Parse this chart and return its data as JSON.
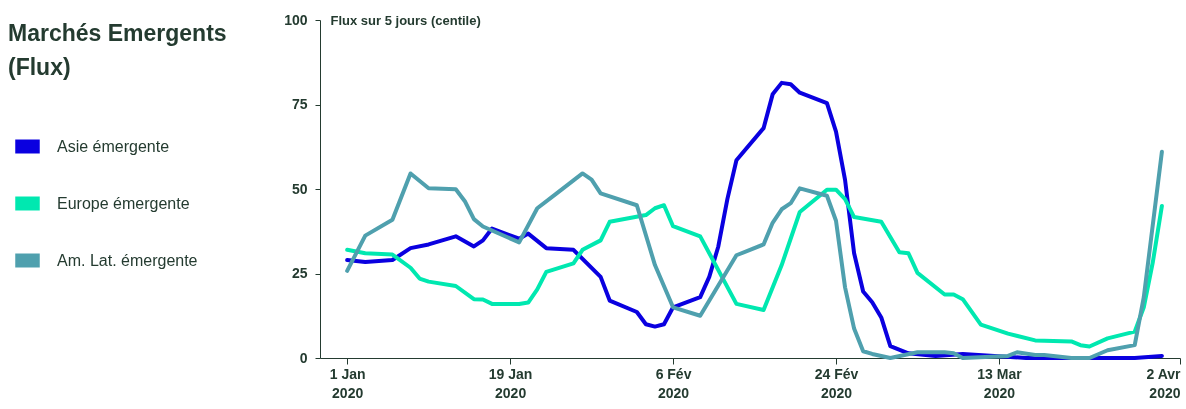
{
  "chart_data": {
    "type": "line",
    "title": "Marchés Emergents (Flux)",
    "ylabel": "Flux sur 5 jours (centile)",
    "xlim": [
      "2019-12-29",
      "2020-04-02"
    ],
    "ylim": [
      0,
      100
    ],
    "yticks": [
      0,
      25,
      50,
      75,
      100
    ],
    "xticks": [
      {
        "value": "2020-01-01",
        "label": "1 Jan\n2020"
      },
      {
        "value": "2020-01-19",
        "label": "19 Jan\n2020"
      },
      {
        "value": "2020-02-06",
        "label": "6 Fév\n2020"
      },
      {
        "value": "2020-02-24",
        "label": "24 Fév\n2020"
      },
      {
        "value": "2020-03-13",
        "label": "13 Mar\n2020"
      },
      {
        "value": "2020-04-02",
        "label": "2 Avr\n2020"
      }
    ],
    "legend": "left",
    "line_style": "solid",
    "series": [
      {
        "name": "Asie émergente",
        "color": "#0a00e0",
        "x": [
          "2020-01-01",
          "2020-01-03",
          "2020-01-06",
          "2020-01-08",
          "2020-01-10",
          "2020-01-13",
          "2020-01-15",
          "2020-01-16",
          "2020-01-17",
          "2020-01-20",
          "2020-01-21",
          "2020-01-23",
          "2020-01-26",
          "2020-01-29",
          "2020-01-30",
          "2020-02-02",
          "2020-02-03",
          "2020-02-04",
          "2020-02-05",
          "2020-02-06",
          "2020-02-09",
          "2020-02-10",
          "2020-02-11",
          "2020-02-12",
          "2020-02-13",
          "2020-02-16",
          "2020-02-17",
          "2020-02-18",
          "2020-02-19",
          "2020-02-20",
          "2020-02-23",
          "2020-02-24",
          "2020-02-25",
          "2020-02-26",
          "2020-02-27",
          "2020-02-28",
          "2020-02-29",
          "2020-03-01",
          "2020-03-03",
          "2020-03-06",
          "2020-03-09",
          "2020-03-16",
          "2020-03-23",
          "2020-03-28",
          "2020-03-31"
        ],
        "values": [
          29,
          28.4,
          29,
          32.5,
          33.6,
          36,
          33,
          34.8,
          38.3,
          35.3,
          36.8,
          32.5,
          32,
          24,
          17,
          13.6,
          10,
          9.3,
          10,
          15,
          18,
          24,
          33,
          47,
          58.5,
          68,
          78,
          81.4,
          81,
          78.5,
          75.4,
          67,
          52.7,
          31,
          19.7,
          16.5,
          12,
          3.5,
          1.4,
          0.6,
          1.2,
          0,
          0,
          0,
          0.6
        ]
      },
      {
        "name": "Europe émergente",
        "color": "#00e8b0",
        "x": [
          "2020-01-01",
          "2020-01-03",
          "2020-01-06",
          "2020-01-08",
          "2020-01-09",
          "2020-01-10",
          "2020-01-13",
          "2020-01-15",
          "2020-01-16",
          "2020-01-17",
          "2020-01-20",
          "2020-01-21",
          "2020-01-22",
          "2020-01-23",
          "2020-01-26",
          "2020-01-27",
          "2020-01-29",
          "2020-01-30",
          "2020-02-03",
          "2020-02-04",
          "2020-02-05",
          "2020-02-06",
          "2020-02-09",
          "2020-02-13",
          "2020-02-16",
          "2020-02-18",
          "2020-02-20",
          "2020-02-23",
          "2020-02-24",
          "2020-02-25",
          "2020-02-26",
          "2020-02-29",
          "2020-03-02",
          "2020-03-03",
          "2020-03-04",
          "2020-03-07",
          "2020-03-08",
          "2020-03-09",
          "2020-03-11",
          "2020-03-14",
          "2020-03-17",
          "2020-03-21",
          "2020-03-22",
          "2020-03-23",
          "2020-03-25",
          "2020-03-28",
          "2020-03-29",
          "2020-03-30",
          "2020-03-31"
        ],
        "values": [
          32,
          31,
          30.6,
          26.7,
          23.5,
          22.6,
          21.3,
          17.4,
          17.3,
          16,
          16,
          16.4,
          20.3,
          25.5,
          28,
          32,
          34.8,
          40.3,
          42.3,
          44.3,
          45.2,
          39,
          36,
          16,
          14.2,
          27.5,
          43.2,
          49.8,
          49.8,
          47,
          41.7,
          40.3,
          31.3,
          31,
          25.2,
          18.8,
          18.8,
          17.4,
          9.9,
          7.2,
          5.2,
          4.9,
          3.8,
          3.4,
          5.8,
          7.8,
          15,
          28.4,
          45
        ]
      },
      {
        "name": "Am. Lat. émergente",
        "color": "#4fa0ae",
        "x": [
          "2020-01-01",
          "2020-01-03",
          "2020-01-06",
          "2020-01-08",
          "2020-01-10",
          "2020-01-13",
          "2020-01-14",
          "2020-01-15",
          "2020-01-16",
          "2020-01-20",
          "2020-01-22",
          "2020-01-24",
          "2020-01-27",
          "2020-01-28",
          "2020-01-29",
          "2020-02-02",
          "2020-02-04",
          "2020-02-06",
          "2020-02-09",
          "2020-02-13",
          "2020-02-16",
          "2020-02-17",
          "2020-02-18",
          "2020-02-19",
          "2020-02-20",
          "2020-02-23",
          "2020-02-24",
          "2020-02-25",
          "2020-02-26",
          "2020-02-27",
          "2020-02-28",
          "2020-03-01",
          "2020-03-04",
          "2020-03-07",
          "2020-03-08",
          "2020-03-09",
          "2020-03-14",
          "2020-03-15",
          "2020-03-17",
          "2020-03-18",
          "2020-03-21",
          "2020-03-23",
          "2020-03-25",
          "2020-03-28",
          "2020-03-29",
          "2020-03-31"
        ],
        "values": [
          25.8,
          36.2,
          40.9,
          54.6,
          50.2,
          49.9,
          46.4,
          41.1,
          38.9,
          34.2,
          44.3,
          48.4,
          54.6,
          52.8,
          48.7,
          45.2,
          27.5,
          15,
          12.5,
          30.4,
          33.6,
          40,
          44,
          45.8,
          50.2,
          48,
          40.6,
          20.9,
          8.7,
          2,
          1.2,
          0,
          1.7,
          1.7,
          1.4,
          0,
          0.6,
          1.7,
          0.9,
          0.9,
          0,
          0,
          2.3,
          3.8,
          18,
          61
        ]
      }
    ]
  }
}
